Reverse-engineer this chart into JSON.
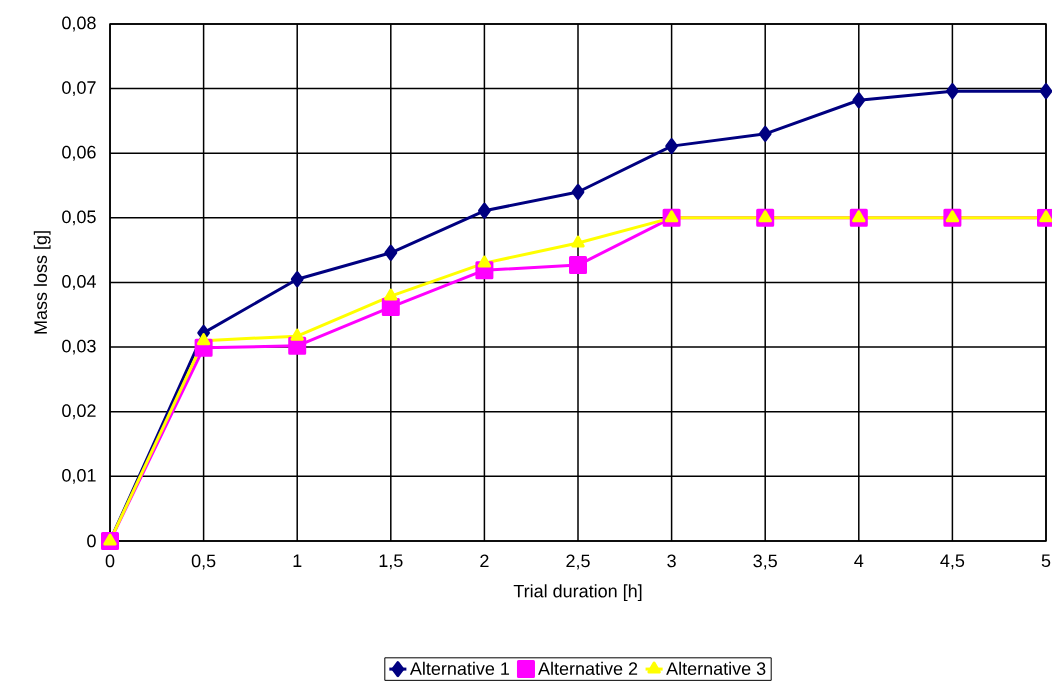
{
  "chart_data": {
    "type": "line",
    "xlabel": "Trial duration [h]",
    "ylabel": "Mass loss [g]",
    "x": [
      0,
      0.5,
      1,
      1.5,
      2,
      2.5,
      3,
      3.5,
      4,
      4.5,
      5
    ],
    "series": [
      {
        "name": "Alternative 1",
        "color": "#000080",
        "marker": "diamond",
        "values": [
          0,
          0.0322,
          0.0405,
          0.0446,
          0.0511,
          0.054,
          0.0611,
          0.063,
          0.0682,
          0.0696,
          0.0696
        ]
      },
      {
        "name": "Alternative 2",
        "color": "#ff00ff",
        "marker": "square",
        "values": [
          0,
          0.0299,
          0.0302,
          0.0362,
          0.0419,
          0.0427,
          0.05,
          0.05,
          0.05,
          0.05,
          0.05
        ]
      },
      {
        "name": "Alternative 3",
        "color": "#ffff00",
        "marker": "triangle",
        "values": [
          0,
          0.031,
          0.0317,
          0.0379,
          0.043,
          0.0461,
          0.05,
          0.05,
          0.05,
          0.05,
          0.05
        ]
      }
    ],
    "xlim": [
      0,
      5
    ],
    "ylim": [
      0,
      0.08
    ],
    "xticks": [
      0,
      {
        "value": 0.5,
        "label": "0,5"
      },
      1,
      {
        "value": 1.5,
        "label": "1,5"
      },
      2,
      {
        "value": 2.5,
        "label": "2,5"
      },
      3,
      {
        "value": 3.5,
        "label": "3,5"
      },
      4,
      {
        "value": 4.5,
        "label": "4,5"
      },
      5
    ],
    "yticks": [
      0,
      {
        "value": 0.01,
        "label": "0,01"
      },
      {
        "value": 0.02,
        "label": "0,02"
      },
      {
        "value": 0.03,
        "label": "0,03"
      },
      {
        "value": 0.04,
        "label": "0,04"
      },
      {
        "value": 0.05,
        "label": "0,05"
      },
      {
        "value": 0.06,
        "label": "0,06"
      },
      {
        "value": 0.07,
        "label": "0,07"
      },
      {
        "value": 0.08,
        "label": "0,08"
      }
    ],
    "grid": true,
    "legend": "bottom",
    "line_style": "solid"
  }
}
